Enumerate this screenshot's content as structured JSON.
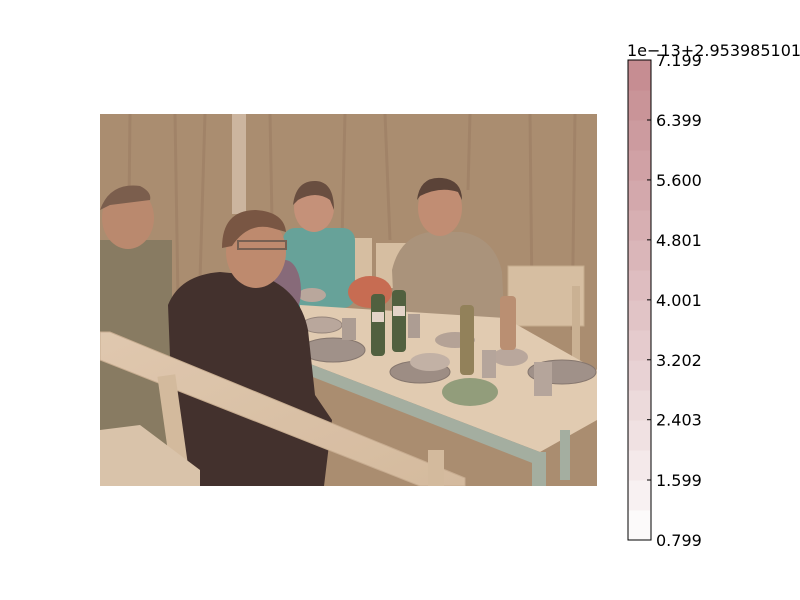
{
  "chart_data": {
    "type": "heatmap",
    "image": {
      "description_colors": {
        "canvas_bg": "#ffffff",
        "image_overlay_tint": "#c88a84",
        "tent_wall": "#a68e6d",
        "table_top": "#e6d7b8",
        "table_legs": "#9fb5a5"
      }
    },
    "colorbar": {
      "offset_text": "1e−13+2.953985101",
      "ticks": [
        {
          "value": 7.199,
          "label": "7.199"
        },
        {
          "value": 6.399,
          "label": "6.399"
        },
        {
          "value": 5.6,
          "label": "5.600"
        },
        {
          "value": 4.801,
          "label": "4.801"
        },
        {
          "value": 4.001,
          "label": "4.001"
        },
        {
          "value": 3.202,
          "label": "3.202"
        },
        {
          "value": 2.403,
          "label": "2.403"
        },
        {
          "value": 1.599,
          "label": "1.599"
        },
        {
          "value": 0.799,
          "label": "0.799"
        }
      ],
      "vmin": 0.799,
      "vmax": 7.199,
      "n_levels": 16,
      "color_low": "#ffffff",
      "color_high": "#c48a8f"
    }
  }
}
